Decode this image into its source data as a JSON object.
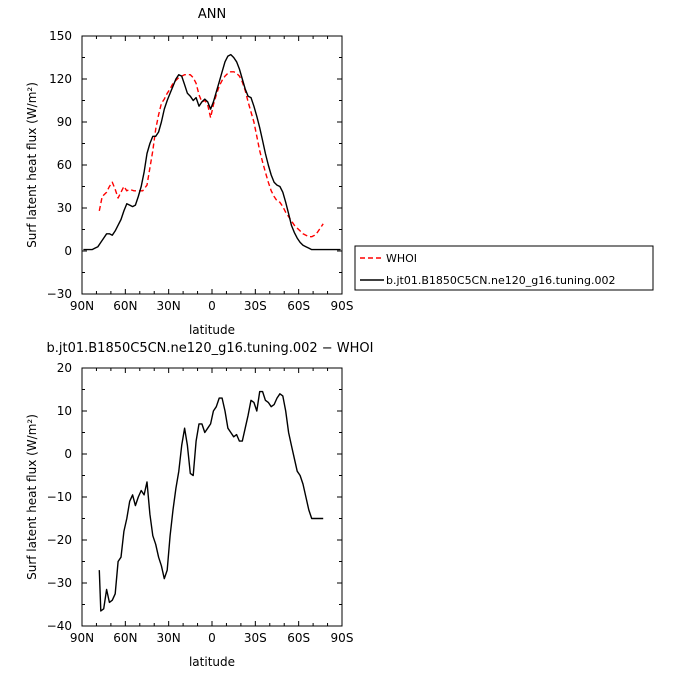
{
  "chart_data": [
    {
      "type": "line",
      "title": "ANN",
      "xlabel": "latitude",
      "ylabel": "Surf latent heat flux (W/m²)",
      "xlim": [
        90,
        -90
      ],
      "ylim": [
        -30,
        150
      ],
      "xticks": [
        90,
        60,
        30,
        0,
        -30,
        -60,
        -90
      ],
      "xtick_labels": [
        "90N",
        "60N",
        "30N",
        "0",
        "30S",
        "60S",
        "90S"
      ],
      "yticks": [
        -30,
        0,
        30,
        60,
        90,
        120,
        150
      ],
      "ytick_labels": [
        "−30",
        "0",
        "30",
        "60",
        "90",
        "120",
        "150"
      ],
      "legend_position": "right",
      "series": [
        {
          "name": "WHOI",
          "color": "#ff0000",
          "style": "dashed",
          "x": [
            78,
            76,
            73,
            71,
            69,
            67,
            65,
            63,
            61,
            59,
            57,
            54,
            51,
            48,
            45,
            43,
            41,
            39,
            37,
            35,
            33,
            31,
            29,
            27,
            25,
            23,
            21,
            19,
            17,
            15,
            13,
            11,
            9,
            7,
            5,
            3,
            1,
            -1,
            -3,
            -5,
            -7,
            -9,
            -11,
            -13,
            -15,
            -17,
            -19,
            -21,
            -23,
            -25,
            -27,
            -29,
            -31,
            -33,
            -35,
            -37,
            -39,
            -41,
            -43,
            -45,
            -47,
            -49,
            -51,
            -53,
            -55,
            -57,
            -59,
            -61,
            -63,
            -65,
            -67,
            -69,
            -71,
            -73,
            -75,
            -77
          ],
          "y": [
            28,
            38,
            41,
            45,
            48,
            43,
            37,
            41,
            45,
            42,
            43,
            42,
            42,
            42,
            46,
            58,
            70,
            85,
            95,
            103,
            106,
            110,
            113,
            117,
            119,
            121,
            122,
            123,
            123,
            123,
            121,
            117,
            109,
            104,
            105,
            102,
            93,
            102,
            109,
            115,
            119,
            122,
            124,
            125,
            125,
            124,
            122,
            118,
            112,
            104,
            97,
            90,
            80,
            70,
            62,
            55,
            48,
            42,
            38,
            35,
            34,
            31,
            27,
            24,
            21,
            18,
            16,
            14,
            12,
            11,
            10,
            10,
            11,
            13,
            16,
            19
          ]
        },
        {
          "name": "b.jt01.B1850C5CN.ne120_g16.tuning.002",
          "color": "#000000",
          "style": "solid",
          "x": [
            89,
            85,
            83,
            81,
            79,
            77,
            75,
            73,
            71,
            69,
            67,
            65,
            63,
            61,
            59,
            57,
            55,
            53,
            51,
            49,
            47,
            45,
            43,
            41,
            39,
            37,
            35,
            33,
            31,
            29,
            27,
            25,
            23,
            21,
            19,
            17,
            15,
            13,
            11,
            9,
            7,
            5,
            3,
            1,
            -1,
            -3,
            -5,
            -7,
            -9,
            -11,
            -13,
            -15,
            -17,
            -19,
            -21,
            -23,
            -25,
            -27,
            -29,
            -31,
            -33,
            -35,
            -37,
            -39,
            -41,
            -43,
            -45,
            -47,
            -49,
            -51,
            -53,
            -55,
            -57,
            -59,
            -61,
            -63,
            -65,
            -67,
            -69,
            -71,
            -73,
            -75,
            -77,
            -79,
            -81,
            -83,
            -85,
            -87,
            -89
          ],
          "y": [
            1,
            1,
            1,
            2,
            3,
            6,
            9,
            12,
            12,
            11,
            14,
            18,
            22,
            28,
            33,
            32,
            31,
            32,
            38,
            45,
            55,
            68,
            75,
            80,
            80,
            83,
            90,
            99,
            105,
            110,
            115,
            120,
            123,
            122,
            116,
            110,
            108,
            105,
            107,
            101,
            104,
            106,
            104,
            99,
            104,
            111,
            118,
            125,
            132,
            136,
            137,
            135,
            132,
            127,
            120,
            113,
            108,
            107,
            101,
            94,
            86,
            77,
            68,
            60,
            53,
            48,
            46,
            45,
            41,
            34,
            26,
            18,
            13,
            9,
            6,
            4,
            3,
            2,
            1,
            1,
            1,
            1,
            1,
            1,
            1,
            1,
            1,
            1,
            1
          ]
        }
      ]
    },
    {
      "type": "line",
      "title": "b.jt01.B1850C5CN.ne120_g16.tuning.002 − WHOI",
      "xlabel": "latitude",
      "ylabel": "Surf latent heat flux (W/m²)",
      "xlim": [
        90,
        -90
      ],
      "ylim": [
        -40,
        20
      ],
      "xticks": [
        90,
        60,
        30,
        0,
        -30,
        -60,
        -90
      ],
      "xtick_labels": [
        "90N",
        "60N",
        "30N",
        "0",
        "30S",
        "60S",
        "90S"
      ],
      "yticks": [
        -40,
        -30,
        -20,
        -10,
        0,
        10,
        20
      ],
      "ytick_labels": [
        "−40",
        "−30",
        "−20",
        "−10",
        "0",
        "10",
        "20"
      ],
      "series": [
        {
          "name": "",
          "color": "#000000",
          "style": "solid",
          "x": [
            78,
            77,
            75,
            73,
            71,
            69,
            67,
            65,
            63,
            61,
            59,
            57,
            55,
            53,
            51,
            49,
            47,
            45,
            43,
            41,
            39,
            37,
            35,
            33,
            31,
            29,
            27,
            25,
            23,
            21,
            19,
            17,
            15,
            13,
            11,
            9,
            7,
            5,
            3,
            1,
            -1,
            -3,
            -5,
            -7,
            -9,
            -11,
            -13,
            -15,
            -17,
            -19,
            -21,
            -23,
            -25,
            -27,
            -29,
            -31,
            -33,
            -35,
            -37,
            -39,
            -41,
            -43,
            -45,
            -47,
            -49,
            -51,
            -53,
            -55,
            -57,
            -59,
            -61,
            -63,
            -65,
            -67,
            -69,
            -71,
            -73,
            -75,
            -77
          ],
          "y": [
            -27,
            -36.5,
            -36,
            -31.5,
            -34.5,
            -34,
            -32.5,
            -25,
            -24,
            -18,
            -15,
            -11,
            -9.5,
            -12,
            -10,
            -8.5,
            -9.5,
            -6.5,
            -14,
            -19,
            -21,
            -24,
            -26,
            -29,
            -27,
            -19,
            -13,
            -8,
            -4,
            2,
            6,
            2,
            -4.5,
            -5,
            3,
            7,
            7,
            5,
            6,
            7,
            10,
            11,
            13,
            13,
            10,
            6,
            5,
            4,
            4.5,
            3,
            3,
            6,
            9,
            12.5,
            12,
            10,
            14.5,
            14.5,
            12.5,
            12,
            11,
            11.5,
            13,
            14,
            13.5,
            10,
            5,
            2,
            -1,
            -4,
            -5,
            -7,
            -10,
            -13,
            -15,
            -15,
            -15,
            -15,
            -15
          ]
        }
      ]
    }
  ]
}
